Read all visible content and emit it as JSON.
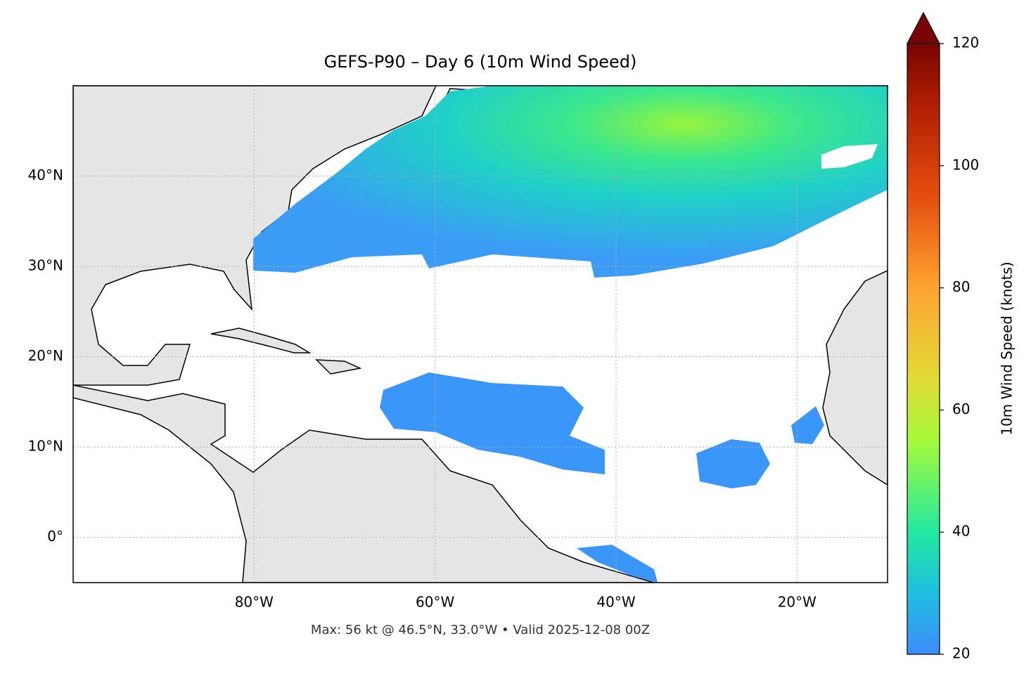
{
  "title": "GEFS-P90 – Day 6 (10m Wind Speed)",
  "footer": "Max: 56 kt @ 46.5°N, 33.0°W • Valid 2025-12-08 00Z",
  "map": {
    "lon_range": [
      -100,
      -10
    ],
    "lat_range": [
      -5,
      50
    ],
    "lon_ticks": [
      {
        "value": -80,
        "label": "80°W"
      },
      {
        "value": -60,
        "label": "60°W"
      },
      {
        "value": -40,
        "label": "40°W"
      },
      {
        "value": -20,
        "label": "20°W"
      }
    ],
    "lat_ticks": [
      {
        "value": 0,
        "label": "0°"
      },
      {
        "value": 10,
        "label": "10°N"
      },
      {
        "value": 20,
        "label": "20°N"
      },
      {
        "value": 30,
        "label": "30°N"
      },
      {
        "value": 40,
        "label": "40°N"
      }
    ]
  },
  "colorbar": {
    "label": "10m Wind Speed (knots)",
    "range": [
      20,
      120
    ],
    "ticks": [
      20,
      40,
      60,
      80,
      100,
      120
    ]
  }
}
